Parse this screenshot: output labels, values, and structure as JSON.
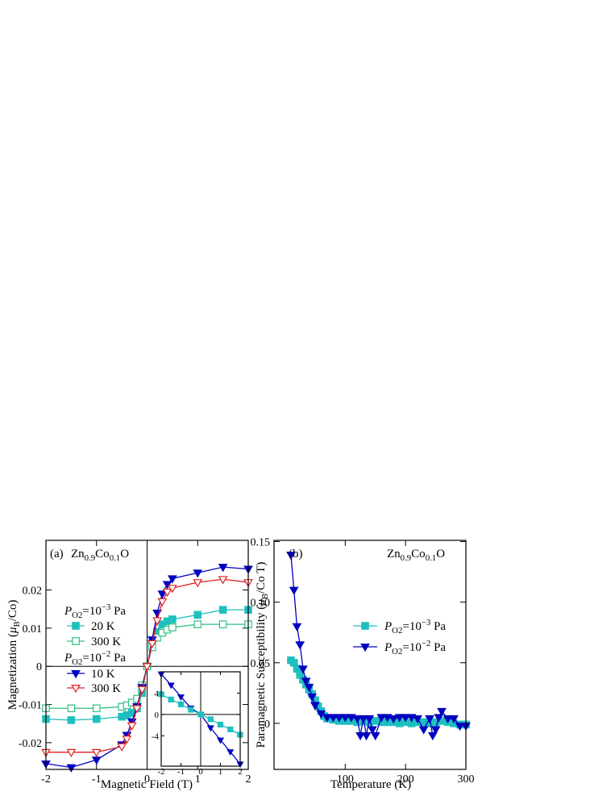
{
  "chart_data": [
    {
      "type": "line",
      "annotations": [
        "(a)",
        [
          {
            "text": "Zn"
          },
          {
            "text": "0.9",
            "sub": true
          },
          {
            "text": "Co"
          },
          {
            "text": "0.1",
            "sub": true
          },
          {
            "text": "O"
          }
        ]
      ],
      "xlabel": "Magnetic Field (T)",
      "ylabel": [
        {
          "text": "Magnetization ("
        },
        {
          "text": "μ",
          "italic": true
        },
        {
          "text": "B",
          "sub": true
        },
        {
          "text": "/Co)"
        }
      ],
      "xlim": [
        -2,
        2
      ],
      "ylim": [
        -0.027,
        0.033
      ],
      "xticks": [
        -2,
        -1,
        0,
        1,
        2
      ],
      "yticks": [
        -0.02,
        -0.01,
        0,
        0.01,
        0.02
      ],
      "zero_lines": true,
      "legend_headers": [
        [
          {
            "text": "P",
            "italic": true
          },
          {
            "text": "O2",
            "sub": true
          },
          {
            "text": "=10"
          },
          {
            "text": "−3",
            "sup": true
          },
          {
            "text": " Pa"
          }
        ],
        [
          {
            "text": "P",
            "italic": true
          },
          {
            "text": "O2",
            "sub": true
          },
          {
            "text": "=10"
          },
          {
            "text": "−2",
            "sup": true
          },
          {
            "text": " Pa"
          }
        ]
      ],
      "x": [
        -2,
        -1.5,
        -1,
        -0.5,
        -0.4,
        -0.3,
        -0.2,
        -0.1,
        0,
        0.1,
        0.2,
        0.3,
        0.4,
        0.5,
        1,
        1.5,
        2
      ],
      "series": [
        {
          "name": "20 K",
          "color": "#1fbfbf",
          "marker": "square",
          "filled": true,
          "values": [
            -0.0138,
            -0.0141,
            -0.0138,
            -0.0132,
            -0.0128,
            -0.0122,
            -0.011,
            -0.007,
            0,
            0.006,
            0.009,
            0.011,
            0.0118,
            0.0123,
            0.0135,
            0.0148,
            0.0148
          ]
        },
        {
          "name": "300 K",
          "color": "#2fbf7f",
          "marker": "square",
          "filled": false,
          "values": [
            -0.011,
            -0.011,
            -0.011,
            -0.0106,
            -0.0102,
            -0.0095,
            -0.0085,
            -0.005,
            0,
            0.005,
            0.0075,
            0.0088,
            0.0096,
            0.0102,
            0.011,
            0.011,
            0.011
          ]
        },
        {
          "name": "10 K",
          "color": "#0000c0",
          "marker": "triangle-down",
          "filled": true,
          "values": [
            -0.0255,
            -0.0265,
            -0.0245,
            -0.0205,
            -0.018,
            -0.0145,
            -0.0105,
            -0.0055,
            0,
            0.007,
            0.014,
            0.019,
            0.0215,
            0.023,
            0.0245,
            0.026,
            0.0255
          ]
        },
        {
          "name": "300 K",
          "color": "#e02020",
          "marker": "triangle-down",
          "filled": false,
          "values": [
            -0.0225,
            -0.0225,
            -0.0225,
            -0.021,
            -0.019,
            -0.0155,
            -0.011,
            -0.006,
            0,
            0.006,
            0.012,
            0.017,
            0.0195,
            0.0205,
            0.022,
            0.0228,
            0.022
          ]
        }
      ]
    },
    {
      "type": "line",
      "xlim": [
        -2,
        2
      ],
      "ylim": [
        -9.7,
        8
      ],
      "xticks": [
        -2,
        -1,
        0,
        1,
        2
      ],
      "yticks": [
        -4,
        0,
        4
      ],
      "zero_lines": true,
      "x": [
        -2,
        -1.5,
        -1,
        -0.5,
        0,
        0.5,
        1,
        1.5,
        2
      ],
      "series": [
        {
          "color": "#0000c0",
          "marker": "triangle-down",
          "filled": true,
          "values": [
            7.6,
            5.5,
            3.3,
            1.2,
            0,
            -2.5,
            -4.8,
            -7,
            -9.3
          ]
        },
        {
          "color": "#1fbfbf",
          "marker": "square",
          "filled": true,
          "values": [
            3.8,
            2.8,
            1.9,
            0.9,
            0,
            -0.9,
            -1.9,
            -2.8,
            -3.8
          ]
        }
      ]
    },
    {
      "type": "line",
      "annotations": [
        "(b)",
        [
          {
            "text": "Zn"
          },
          {
            "text": "0.9",
            "sub": true
          },
          {
            "text": "Co"
          },
          {
            "text": "0.1",
            "sub": true
          },
          {
            "text": "O"
          }
        ]
      ],
      "xlabel": "Temperature (K)",
      "ylabel": [
        {
          "text": "Paramagnetic Susceptibility ("
        },
        {
          "text": "μ",
          "italic": true
        },
        {
          "text": "B",
          "sub": true
        },
        {
          "text": "/Co T)"
        }
      ],
      "xlim": [
        -18,
        300
      ],
      "ylim": [
        -0.038,
        0.151
      ],
      "xticks": [
        100,
        200,
        300
      ],
      "yticks": [
        0,
        0.05,
        {
          "value": 0.1,
          "label": "0.10"
        },
        0.15
      ],
      "zero_lines": false,
      "series": [
        {
          "name": [
            {
              "text": "P",
              "italic": true
            },
            {
              "text": "O2",
              "sub": true
            },
            {
              "text": "=10"
            },
            {
              "text": "−3",
              "sup": true
            },
            {
              "text": " Pa"
            }
          ],
          "color": "#1fbfbf",
          "marker": "square",
          "filled": true,
          "x": [
            10,
            15,
            20,
            25,
            30,
            35,
            40,
            45,
            50,
            55,
            60,
            65,
            70,
            80,
            90,
            100,
            110,
            120,
            130,
            140,
            150,
            160,
            170,
            180,
            190,
            200,
            210,
            220,
            230,
            240,
            250,
            260,
            270,
            280,
            290,
            300
          ],
          "values": [
            0.052,
            0.05,
            0.045,
            0.04,
            0.036,
            0.032,
            0.028,
            0.024,
            0.019,
            0.014,
            0.01,
            0.006,
            0.004,
            0.003,
            0.002,
            0.002,
            0.002,
            0.001,
            0.002,
            0.001,
            0.002,
            0.001,
            0.001,
            0.001,
            0,
            0.001,
            0,
            0.001,
            0.001,
            0,
            0.001,
            0.002,
            0.001,
            0,
            -0.001,
            -0.001
          ]
        },
        {
          "name": [
            {
              "text": "P",
              "italic": true
            },
            {
              "text": "O2",
              "sub": true
            },
            {
              "text": "=10"
            },
            {
              "text": "−2",
              "sup": true
            },
            {
              "text": " Pa"
            }
          ],
          "color": "#0000c0",
          "marker": "triangle-down",
          "filled": true,
          "x": [
            10,
            15,
            20,
            25,
            30,
            35,
            40,
            45,
            50,
            60,
            70,
            80,
            90,
            100,
            110,
            120,
            125,
            130,
            135,
            140,
            145,
            150,
            160,
            170,
            180,
            190,
            200,
            210,
            220,
            230,
            240,
            245,
            250,
            255,
            260,
            270,
            280,
            290,
            300
          ],
          "values": [
            0.139,
            0.11,
            0.08,
            0.065,
            0.045,
            0.035,
            0.03,
            0.022,
            0.015,
            0.008,
            0.005,
            0.005,
            0.005,
            0.005,
            0.005,
            0.004,
            -0.01,
            0.004,
            -0.01,
            0.004,
            -0.005,
            -0.01,
            0.005,
            0.005,
            0.004,
            0.005,
            0.005,
            0.005,
            0.004,
            -0.005,
            0.004,
            -0.01,
            -0.005,
            0.005,
            0.01,
            0.004,
            0.004,
            -0.002,
            -0.002
          ]
        }
      ]
    }
  ]
}
